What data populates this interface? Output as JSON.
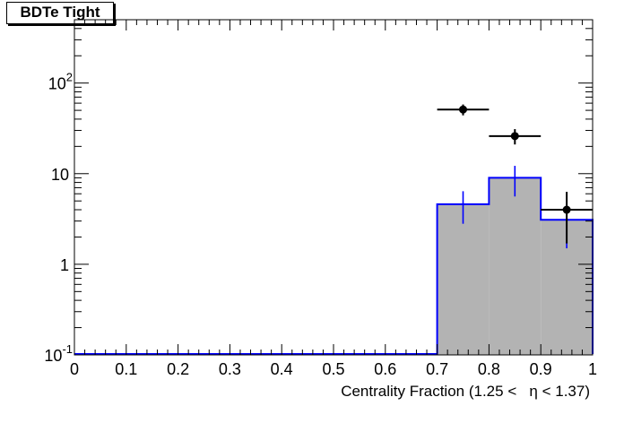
{
  "title": "BDTe Tight",
  "chart_data": {
    "type": "histogram",
    "title": "BDTe Tight",
    "xlabel": "Centrality Fraction (1.25 <   η < 1.37)",
    "ylabel": "",
    "xlim": [
      0,
      1
    ],
    "ylim": [
      0.1,
      500
    ],
    "y_scale": "log",
    "x_ticks": [
      "0",
      "0.1",
      "0.2",
      "0.3",
      "0.4",
      "0.5",
      "0.6",
      "0.7",
      "0.8",
      "0.9",
      "1"
    ],
    "y_ticks": [
      {
        "value": 0.1,
        "base": "10",
        "exp": "-1"
      },
      {
        "value": 1,
        "base": "1",
        "exp": ""
      },
      {
        "value": 10,
        "base": "10",
        "exp": ""
      },
      {
        "value": 100,
        "base": "10",
        "exp": "2"
      }
    ],
    "bin_edges": [
      0.7,
      0.8,
      0.9,
      1.0
    ],
    "series": [
      {
        "kind": "stacked-histogram",
        "fill_color": "#b3b3b3",
        "line_color": "#0000ff",
        "x": [
          0.75,
          0.85,
          0.95
        ],
        "y": [
          4.6,
          9.0,
          3.1
        ],
        "y_err_low": [
          1.8,
          3.4,
          1.6
        ],
        "y_err_high": [
          1.8,
          3.2,
          1.5
        ]
      },
      {
        "kind": "data-points",
        "color": "#000000",
        "x": [
          0.75,
          0.85,
          0.95
        ],
        "y": [
          51,
          26,
          4.0
        ],
        "x_err": [
          0.05,
          0.05,
          0.05
        ],
        "y_err_low": [
          7,
          5,
          2.3
        ],
        "y_err_high": [
          7,
          5,
          2.3
        ]
      }
    ],
    "grid": false,
    "colors": {
      "frame": "#000000",
      "mc_fill": "#b3b3b3",
      "mc_line": "#0000ff",
      "data": "#000000"
    }
  }
}
